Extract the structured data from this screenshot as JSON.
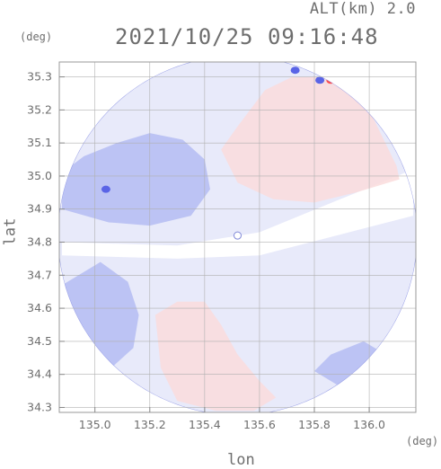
{
  "header": {
    "alt_label": "ALT(km) 2.0",
    "time_label": "2021/10/25 09:16:48",
    "y_unit": "(deg)",
    "x_unit": "(deg)"
  },
  "chart_data": {
    "type": "heatmap",
    "xlabel": "lon",
    "ylabel": "lat",
    "xlim": [
      134.87,
      136.17
    ],
    "ylim": [
      34.285,
      35.345
    ],
    "x_ticks": [
      "135.0",
      "135.2",
      "135.4",
      "135.6",
      "135.8",
      "136.0"
    ],
    "x_tick_values": [
      135.0,
      135.2,
      135.4,
      135.6,
      135.8,
      136.0
    ],
    "y_ticks": [
      "35.3",
      "35.2",
      "35.1",
      "35.0",
      "34.9",
      "34.8",
      "34.7",
      "34.6",
      "34.5",
      "34.4",
      "34.3"
    ],
    "y_tick_values": [
      35.3,
      35.2,
      35.1,
      35.0,
      34.9,
      34.8,
      34.7,
      34.6,
      34.5,
      34.4,
      34.3
    ],
    "grid": true,
    "radar_center": {
      "lon": 135.52,
      "lat": 34.82
    },
    "colors": {
      "toward": "#b4bcf2",
      "away": "#fadcdc",
      "strong_toward": "#5a64e6",
      "strong_away": "#ff4a4a",
      "light": "#e8eafa",
      "grid": "#b0b0b0"
    },
    "regions": [
      {
        "name": "northwest-toward",
        "tone": "toward",
        "points": [
          [
            134.88,
            34.9
          ],
          [
            134.88,
            35.01
          ],
          [
            134.96,
            35.06
          ],
          [
            135.08,
            35.1
          ],
          [
            135.2,
            35.13
          ],
          [
            135.32,
            35.11
          ],
          [
            135.4,
            35.05
          ],
          [
            135.42,
            34.96
          ],
          [
            135.35,
            34.88
          ],
          [
            135.2,
            34.85
          ],
          [
            135.05,
            34.86
          ]
        ]
      },
      {
        "name": "northeast-away",
        "tone": "away",
        "points": [
          [
            135.46,
            35.08
          ],
          [
            135.52,
            35.15
          ],
          [
            135.62,
            35.26
          ],
          [
            135.72,
            35.3
          ],
          [
            135.86,
            35.3
          ],
          [
            136.0,
            35.2
          ],
          [
            136.1,
            35.03
          ],
          [
            136.11,
            34.99
          ],
          [
            135.95,
            34.95
          ],
          [
            135.8,
            34.92
          ],
          [
            135.65,
            34.93
          ],
          [
            135.52,
            34.98
          ]
        ]
      },
      {
        "name": "south-away",
        "tone": "away",
        "points": [
          [
            135.22,
            34.58
          ],
          [
            135.3,
            34.62
          ],
          [
            135.4,
            34.62
          ],
          [
            135.46,
            34.55
          ],
          [
            135.52,
            34.46
          ],
          [
            135.6,
            34.38
          ],
          [
            135.66,
            34.33
          ],
          [
            135.58,
            34.29
          ],
          [
            135.44,
            34.29
          ],
          [
            135.3,
            34.32
          ],
          [
            135.24,
            34.42
          ]
        ]
      },
      {
        "name": "southwest-toward",
        "tone": "toward",
        "points": [
          [
            134.88,
            34.67
          ],
          [
            134.88,
            34.56
          ],
          [
            134.96,
            34.47
          ],
          [
            135.06,
            34.42
          ],
          [
            135.14,
            34.48
          ],
          [
            135.16,
            34.58
          ],
          [
            135.12,
            34.68
          ],
          [
            135.02,
            34.74
          ]
        ]
      },
      {
        "name": "southeast-toward",
        "tone": "toward",
        "points": [
          [
            135.86,
            34.46
          ],
          [
            135.98,
            34.5
          ],
          [
            136.06,
            34.46
          ],
          [
            136.0,
            34.37
          ],
          [
            135.88,
            34.37
          ],
          [
            135.8,
            34.41
          ]
        ]
      }
    ],
    "echoes": [
      {
        "tone": "strong_toward",
        "lon": 135.73,
        "lat": 35.32
      },
      {
        "tone": "strong_toward",
        "lon": 135.82,
        "lat": 35.29
      },
      {
        "tone": "strong_away",
        "lon": 135.86,
        "lat": 35.29
      },
      {
        "tone": "strong_toward",
        "lon": 135.04,
        "lat": 34.96
      }
    ]
  }
}
